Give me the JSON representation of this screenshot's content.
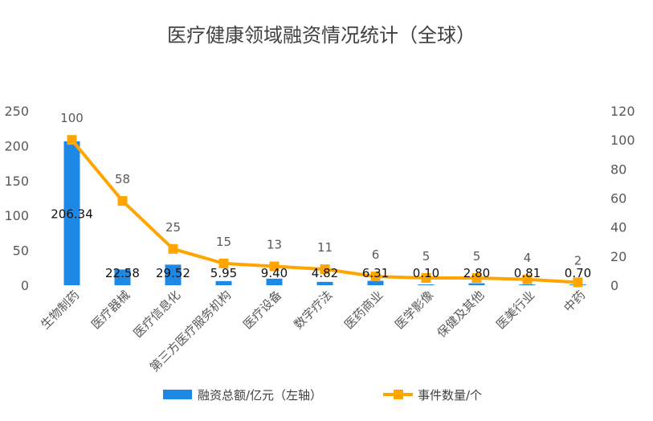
{
  "chart_data": {
    "type": "bar",
    "title": "医疗健康领域融资情况统计（全球）",
    "categories": [
      "生物制药",
      "医疗器械",
      "医疗信息化",
      "第三方医疗服务机构",
      "医疗设备",
      "数字疗法",
      "医药商业",
      "医学影像",
      "保健及其他",
      "医美行业",
      "中药"
    ],
    "series": [
      {
        "name": "融资总额/亿元（左轴）",
        "type": "bar",
        "axis": "left",
        "color": "#1E88E5",
        "values": [
          206.34,
          22.58,
          29.52,
          5.95,
          9.4,
          4.82,
          6.31,
          0.1,
          2.8,
          0.81,
          0.7
        ],
        "labels": [
          "206.34",
          "22.58",
          "29.52",
          "5.95",
          "9.40",
          "4.82",
          "6.31",
          "0.10",
          "2.80",
          "0.81",
          "0.70"
        ]
      },
      {
        "name": "事件数量/个",
        "type": "line",
        "axis": "right",
        "color": "#FFA500",
        "values": [
          100,
          58,
          25,
          15,
          13,
          11,
          6,
          5,
          5,
          4,
          2
        ],
        "labels": [
          "100",
          "58",
          "25",
          "15",
          "13",
          "11",
          "6",
          "5",
          "5",
          "4",
          "2"
        ]
      }
    ],
    "left_axis": {
      "min": 0,
      "max": 250,
      "ticks": [
        "0",
        "50",
        "100",
        "150",
        "200",
        "250"
      ]
    },
    "right_axis": {
      "min": 0,
      "max": 120,
      "ticks": [
        "0",
        "20",
        "40",
        "60",
        "80",
        "100",
        "120"
      ]
    },
    "grid": false,
    "legend_position": "bottom"
  }
}
